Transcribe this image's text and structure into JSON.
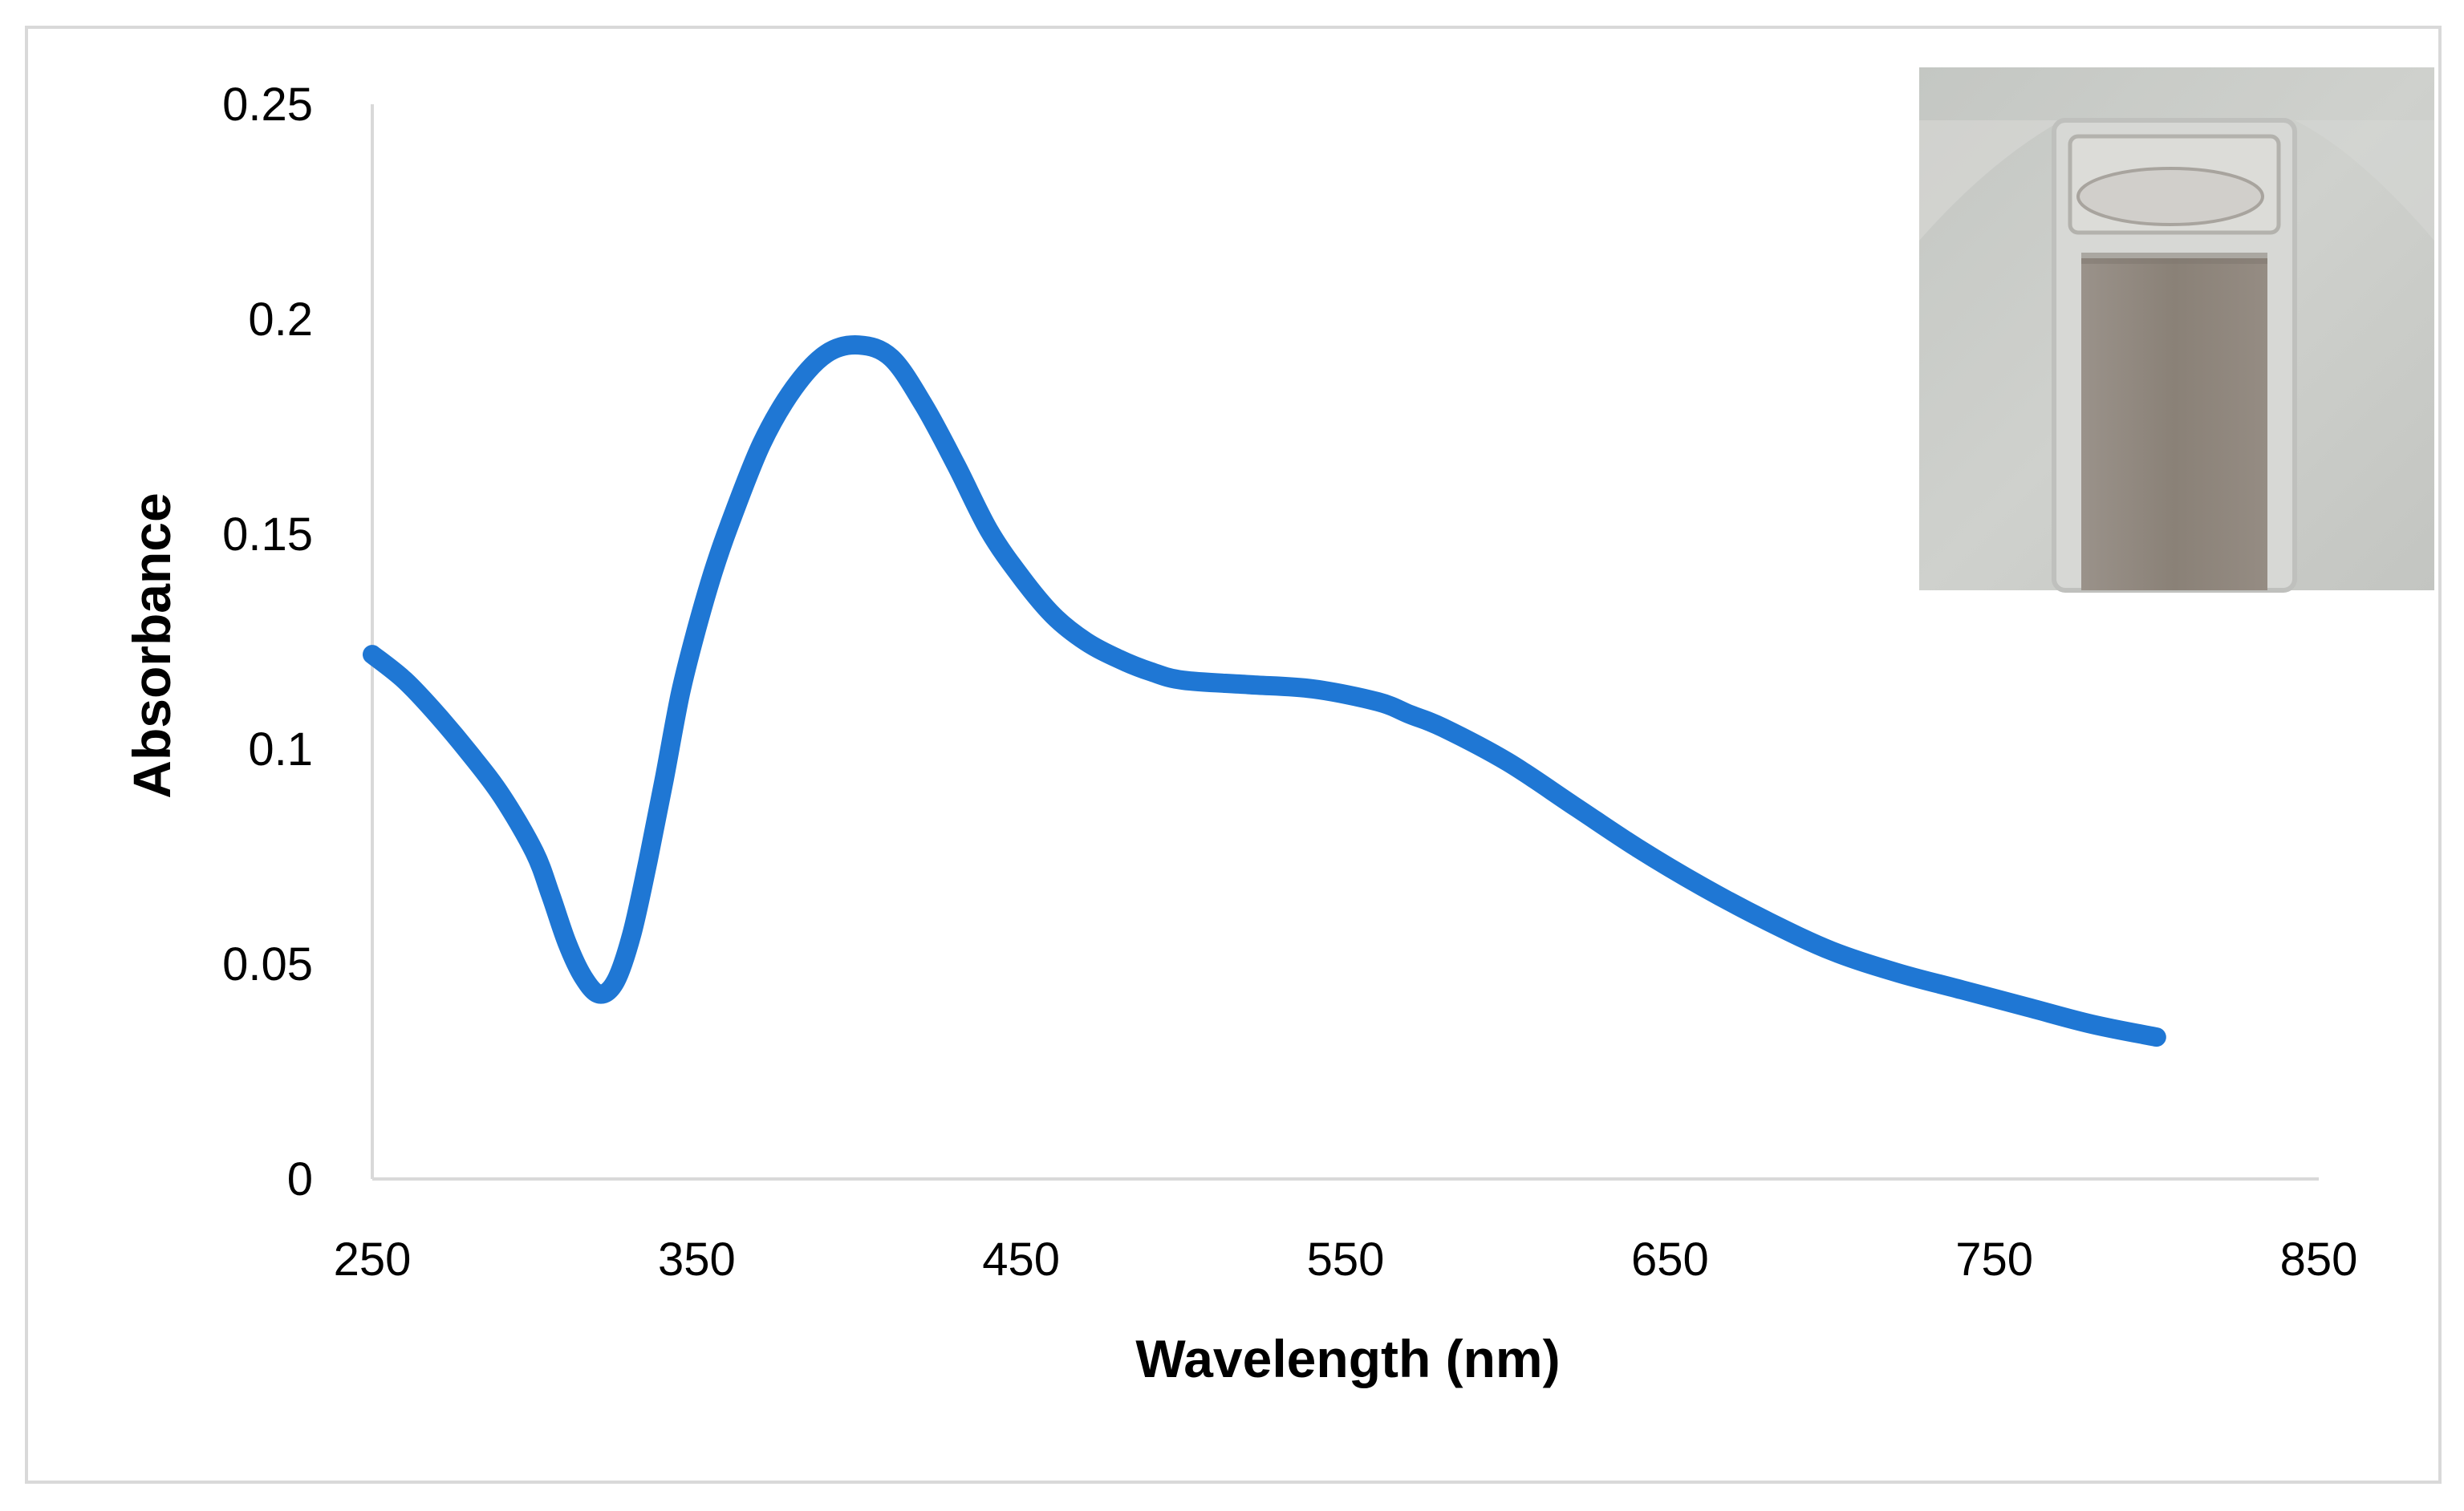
{
  "chart_data": {
    "type": "line",
    "title": "",
    "xlabel": "Wavelength (nm)",
    "ylabel": "Absorbance",
    "xlim": [
      250,
      850
    ],
    "ylim": [
      0,
      0.25
    ],
    "x_ticks": [
      250,
      350,
      450,
      550,
      650,
      750,
      850
    ],
    "y_ticks": [
      0,
      0.05,
      0.1,
      0.15,
      0.2,
      0.25
    ],
    "x_tick_labels": [
      "250",
      "350",
      "450",
      "550",
      "650",
      "750",
      "850"
    ],
    "y_tick_labels": [
      "0",
      "0.05",
      "0.1",
      "0.15",
      "0.2",
      "0.25"
    ],
    "grid": false,
    "legend": "none",
    "series": [
      {
        "name": "Absorbance",
        "color": "#1f77d4",
        "x": [
          250,
          260,
          270,
          280,
          290,
          300,
          305,
          310,
          315,
          320,
          325,
          330,
          335,
          340,
          345,
          350,
          355,
          360,
          370,
          380,
          390,
          400,
          410,
          420,
          430,
          440,
          450,
          460,
          470,
          480,
          490,
          500,
          520,
          540,
          560,
          570,
          580,
          600,
          620,
          640,
          660,
          680,
          700,
          720,
          740,
          760,
          780,
          800
        ],
        "y": [
          0.122,
          0.116,
          0.108,
          0.099,
          0.089,
          0.076,
          0.066,
          0.055,
          0.047,
          0.043,
          0.046,
          0.057,
          0.074,
          0.093,
          0.113,
          0.128,
          0.141,
          0.152,
          0.171,
          0.184,
          0.192,
          0.194,
          0.191,
          0.18,
          0.166,
          0.151,
          0.14,
          0.131,
          0.125,
          0.121,
          0.118,
          0.116,
          0.115,
          0.114,
          0.111,
          0.108,
          0.105,
          0.097,
          0.087,
          0.077,
          0.068,
          0.06,
          0.053,
          0.048,
          0.044,
          0.04,
          0.036,
          0.033
        ]
      }
    ],
    "inset": {
      "description_icon": "cuvette-photo-icon",
      "colors": {
        "background": "#c9cbc8",
        "cuvette_body": "#d4d5d2",
        "liquid": "#8e857b"
      }
    },
    "colors": {
      "axis": "#d9d9d9",
      "frame": "#d9d9d9",
      "background": "#ffffff"
    }
  }
}
